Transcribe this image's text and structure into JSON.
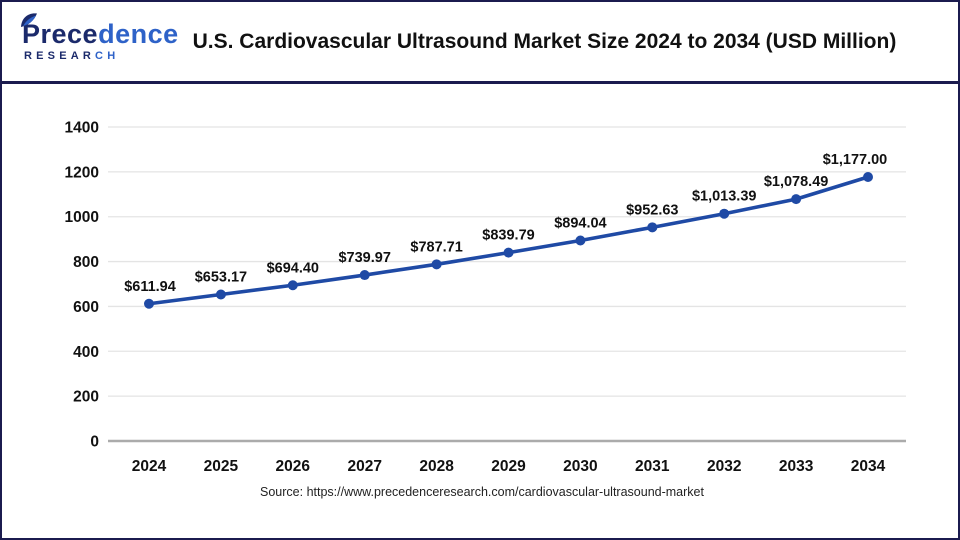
{
  "header": {
    "logo": {
      "brand_dark": "Prece",
      "brand_light": "dence",
      "research_dark": "RESEAR",
      "research_light": "CH"
    },
    "title": "U.S. Cardiovascular Ultrasound Market Size 2024 to 2034 (USD Million)"
  },
  "chart_data": {
    "type": "line",
    "title": "U.S. Cardiovascular Ultrasound Market Size 2024 to 2034 (USD Million)",
    "categories": [
      "2024",
      "2025",
      "2026",
      "2027",
      "2028",
      "2029",
      "2030",
      "2031",
      "2032",
      "2033",
      "2034"
    ],
    "values": [
      611.94,
      653.17,
      694.4,
      739.97,
      787.71,
      839.79,
      894.04,
      952.63,
      1013.39,
      1078.49,
      1177.0
    ],
    "point_labels": [
      "$611.94",
      "$653.17",
      "$694.40",
      "$739.97",
      "$787.71",
      "$839.79",
      "$894.04",
      "$952.63",
      "$1,013.39",
      "$1,078.49",
      "$1,177.00"
    ],
    "xlabel": "",
    "ylabel": "",
    "ylim": [
      0,
      1400
    ],
    "ytick_step": 200,
    "yticks": [
      "0",
      "200",
      "400",
      "600",
      "800",
      "1000",
      "1200",
      "1400"
    ],
    "grid": true,
    "legend": "none",
    "line_color": "#1f4aa5",
    "marker_color": "#1f4aa5",
    "grid_color": "#e4e4e4",
    "axis_color": "#ababab"
  },
  "footer": {
    "source": "Source: https://www.precedenceresearch.com/cardiovascular-ultrasound-market"
  },
  "colors": {
    "border_navy": "#1b1b4f",
    "logo_dark": "#1b2a6b",
    "logo_light": "#2e62c8",
    "title_text": "#111111"
  }
}
